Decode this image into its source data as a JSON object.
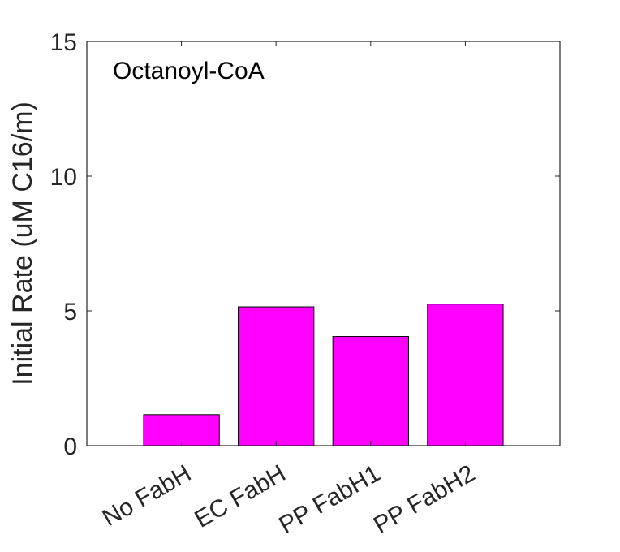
{
  "chart_data": {
    "type": "bar",
    "categories": [
      "No FabH",
      "EC FabH",
      "PP FabH1",
      "PP FabH2"
    ],
    "values": [
      1.15,
      5.15,
      4.05,
      5.25
    ],
    "annotation": "Octanoyl-CoA",
    "xlabel": "",
    "ylabel": "Initial Rate (uM C16/m)",
    "ylim": [
      0,
      15
    ],
    "xlim": [
      0,
      5
    ],
    "yticks": [
      0,
      5,
      10,
      15
    ],
    "ytick_labels": [
      "0",
      "5",
      "10",
      "15"
    ],
    "grid": false,
    "bar_color": "#ff00ff",
    "edge_color": "#000000",
    "legend": "none"
  }
}
